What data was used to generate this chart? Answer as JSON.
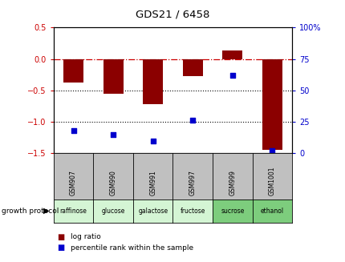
{
  "title": "GDS21 / 6458",
  "samples": [
    "GSM907",
    "GSM990",
    "GSM991",
    "GSM997",
    "GSM999",
    "GSM1001"
  ],
  "protocols": [
    "raffinose",
    "glucose",
    "galactose",
    "fructose",
    "sucrose",
    "ethanol"
  ],
  "log_ratio": [
    -0.38,
    -0.55,
    -0.72,
    -0.27,
    0.13,
    -1.45
  ],
  "percentile_rank": [
    18,
    15,
    10,
    26,
    62,
    2
  ],
  "bar_color": "#8B0000",
  "dot_color": "#0000CD",
  "left_ylim": [
    -1.5,
    0.5
  ],
  "right_ylim": [
    0,
    100
  ],
  "left_yticks": [
    -1.5,
    -1.0,
    -0.5,
    0.0,
    0.5
  ],
  "right_yticks": [
    0,
    25,
    50,
    75,
    100
  ],
  "protocol_colors": [
    "#d4f5d4",
    "#d4f5d4",
    "#d4f5d4",
    "#d4f5d4",
    "#7dcd7d",
    "#7dcd7d"
  ],
  "gsm_bg_color": "#c0c0c0",
  "growth_protocol_label": "growth protocol",
  "legend_label_log": "log ratio",
  "legend_label_pct": "percentile rank within the sample",
  "axhline_zero_color": "#cc0000",
  "axhline_dot_color": "#000000",
  "title_color": "#000000",
  "left_tick_color": "#cc0000",
  "right_tick_color": "#0000cc"
}
